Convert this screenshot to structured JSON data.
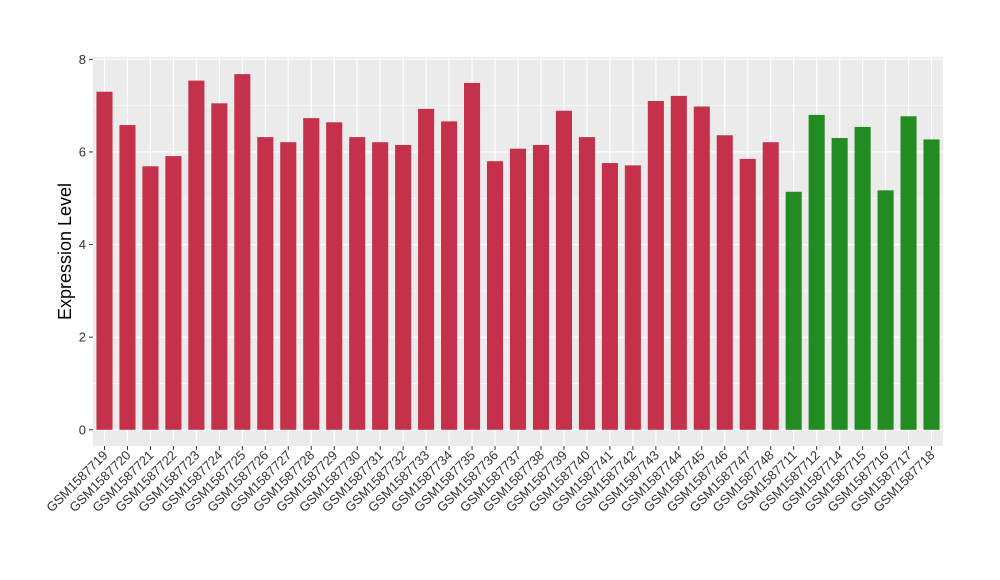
{
  "chart_data": {
    "type": "bar",
    "ylabel": "Expression Level",
    "xlabel": "",
    "ylim": [
      -0.35,
      8.05
    ],
    "yticks": [
      0,
      2,
      4,
      6,
      8
    ],
    "grid": true,
    "colors": {
      "group1": "#C5304A",
      "group2": "#228B22",
      "panel": "#EBEBEB",
      "grid": "#FFFFFF"
    },
    "categories": [
      "GSM1587719",
      "GSM1587720",
      "GSM1587721",
      "GSM1587722",
      "GSM1587723",
      "GSM1587724",
      "GSM1587725",
      "GSM1587726",
      "GSM1587727",
      "GSM1587728",
      "GSM1587729",
      "GSM1587730",
      "GSM1587731",
      "GSM1587732",
      "GSM1587733",
      "GSM1587734",
      "GSM1587735",
      "GSM1587736",
      "GSM1587737",
      "GSM1587738",
      "GSM1587739",
      "GSM1587740",
      "GSM1587741",
      "GSM1587742",
      "GSM1587743",
      "GSM1587744",
      "GSM1587745",
      "GSM1587746",
      "GSM1587747",
      "GSM1587748",
      "GSM1587711",
      "GSM1587712",
      "GSM1587714",
      "GSM1587715",
      "GSM1587716",
      "GSM1587717",
      "GSM1587718"
    ],
    "values": [
      7.3,
      6.58,
      5.69,
      5.91,
      7.54,
      7.05,
      7.68,
      6.32,
      6.21,
      6.73,
      6.64,
      6.32,
      6.21,
      6.15,
      6.93,
      6.66,
      7.49,
      5.8,
      6.07,
      6.15,
      6.89,
      6.32,
      5.76,
      5.71,
      7.1,
      7.21,
      6.98,
      6.36,
      5.85,
      6.21,
      5.14,
      6.8,
      6.3,
      6.54,
      5.17,
      6.77,
      6.27
    ],
    "groups": [
      "group1",
      "group1",
      "group1",
      "group1",
      "group1",
      "group1",
      "group1",
      "group1",
      "group1",
      "group1",
      "group1",
      "group1",
      "group1",
      "group1",
      "group1",
      "group1",
      "group1",
      "group1",
      "group1",
      "group1",
      "group1",
      "group1",
      "group1",
      "group1",
      "group1",
      "group1",
      "group1",
      "group1",
      "group1",
      "group1",
      "group2",
      "group2",
      "group2",
      "group2",
      "group2",
      "group2",
      "group2"
    ]
  }
}
